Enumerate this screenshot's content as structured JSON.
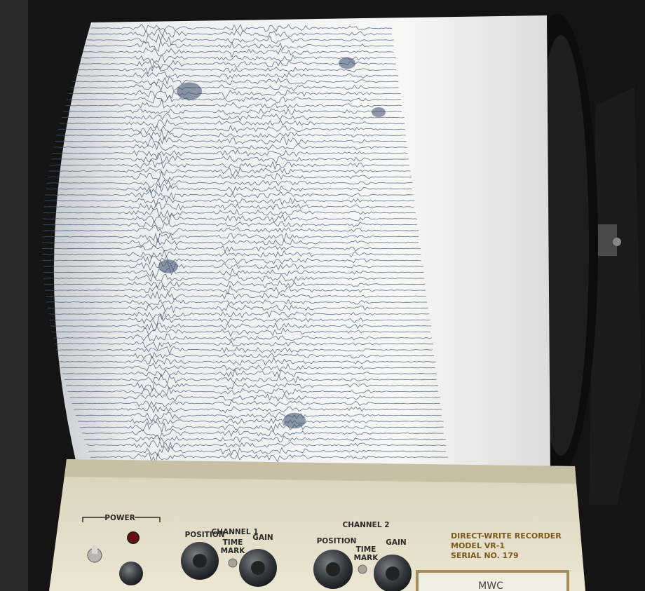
{
  "panel": {
    "power": "POWER",
    "channels": [
      {
        "title": "CHANNEL 1",
        "position": "POSITION",
        "time_mark": [
          "TIME",
          "MARK"
        ],
        "gain": "GAIN"
      },
      {
        "title": "CHANNEL 2",
        "position": "POSITION",
        "time_mark": [
          "TIME",
          "MARK"
        ],
        "gain": "GAIN"
      }
    ],
    "recorder": [
      "DIRECT-WRITE RECORDER",
      "MODEL VR-1",
      "SERIAL NO. 179"
    ],
    "tag": "MWC"
  }
}
